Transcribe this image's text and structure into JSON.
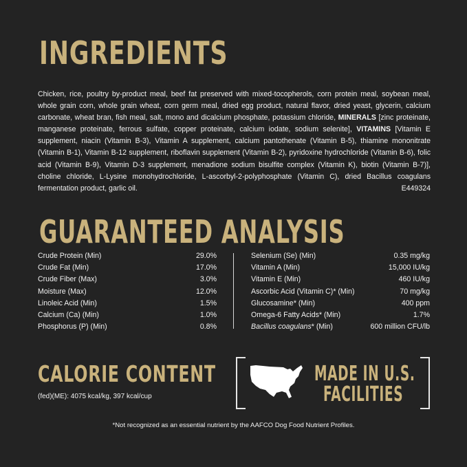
{
  "colors": {
    "background": "#232323",
    "accent_gold": "#c9b27c",
    "text": "#f2f2f2"
  },
  "ingredients": {
    "title": "INGREDIENTS",
    "text_1": "Chicken, rice, poultry by-product meal, beef fat preserved with mixed-tocopherols, corn protein meal, soybean meal, whole grain corn, whole grain wheat, corn germ meal, dried egg product, natural flavor, dried yeast, glycerin, calcium carbonate, wheat bran, fish meal, salt, mono and dicalcium phosphate, potassium chloride, ",
    "minerals_label": "MINERALS",
    "text_2": " [zinc proteinate, manganese proteinate, ferrous sulfate, copper proteinate, calcium iodate, sodium selenite], ",
    "vitamins_label": "VITAMINS",
    "text_3": " [Vitamin E supplement, niacin (Vitamin B-3), Vitamin A supplement, calcium pantothenate (Vitamin B-5), thiamine mononitrate (Vitamin B-1), Vitamin B-12 supplement, riboflavin supplement (Vitamin B-2), pyridoxine hydrochloride (Vitamin B-6), folic acid (Vitamin B-9), Vitamin D-3 supplement, menadione sodium bisulfite complex (Vitamin K), biotin (Vitamin B-7)], choline chloride, L-Lysine monohydrochloride, L-ascorbyl-2-polyphosphate (Vitamin C), dried Bacillus coagulans fermentation product, garlic oil.",
    "code": "E449324"
  },
  "analysis": {
    "title": "GUARANTEED ANALYSIS",
    "left": [
      {
        "name": "Crude Protein (Min)",
        "value": "29.0%"
      },
      {
        "name": "Crude Fat (Min)",
        "value": "17.0%"
      },
      {
        "name": "Crude Fiber (Max)",
        "value": "3.0%"
      },
      {
        "name": "Moisture (Max)",
        "value": "12.0%"
      },
      {
        "name": "Linoleic Acid (Min)",
        "value": "1.5%"
      },
      {
        "name": "Calcium (Ca) (Min)",
        "value": "1.0%"
      },
      {
        "name": "Phosphorus (P) (Min)",
        "value": "0.8%"
      }
    ],
    "right": [
      {
        "name": "Selenium (Se) (Min)",
        "value": "0.35 mg/kg"
      },
      {
        "name": "Vitamin A (Min)",
        "value": "15,000 IU/kg"
      },
      {
        "name": "Vitamin E (Min)",
        "value": "460 IU/kg"
      },
      {
        "name": "Ascorbic Acid (Vitamin C)* (Min)",
        "value": "70 mg/kg"
      },
      {
        "name": "Glucosamine* (Min)",
        "value": "400 ppm"
      },
      {
        "name": "Omega-6 Fatty Acids* (Min)",
        "value": "1.7%"
      },
      {
        "name_italic": "Bacillus coagulans",
        "name": "* (Min)",
        "value": "600 million CFU/lb"
      }
    ]
  },
  "calorie": {
    "title": "CALORIE CONTENT",
    "text": "(fed)(ME): 4075 kcal/kg, 397 kcal/cup"
  },
  "made_in": {
    "line1": "MADE IN U.S.",
    "line2": "FACILITIES",
    "icon": "usa-map-icon"
  },
  "footnote": "*Not recognized as an essential nutrient by the AAFCO Dog Food Nutrient Profiles."
}
